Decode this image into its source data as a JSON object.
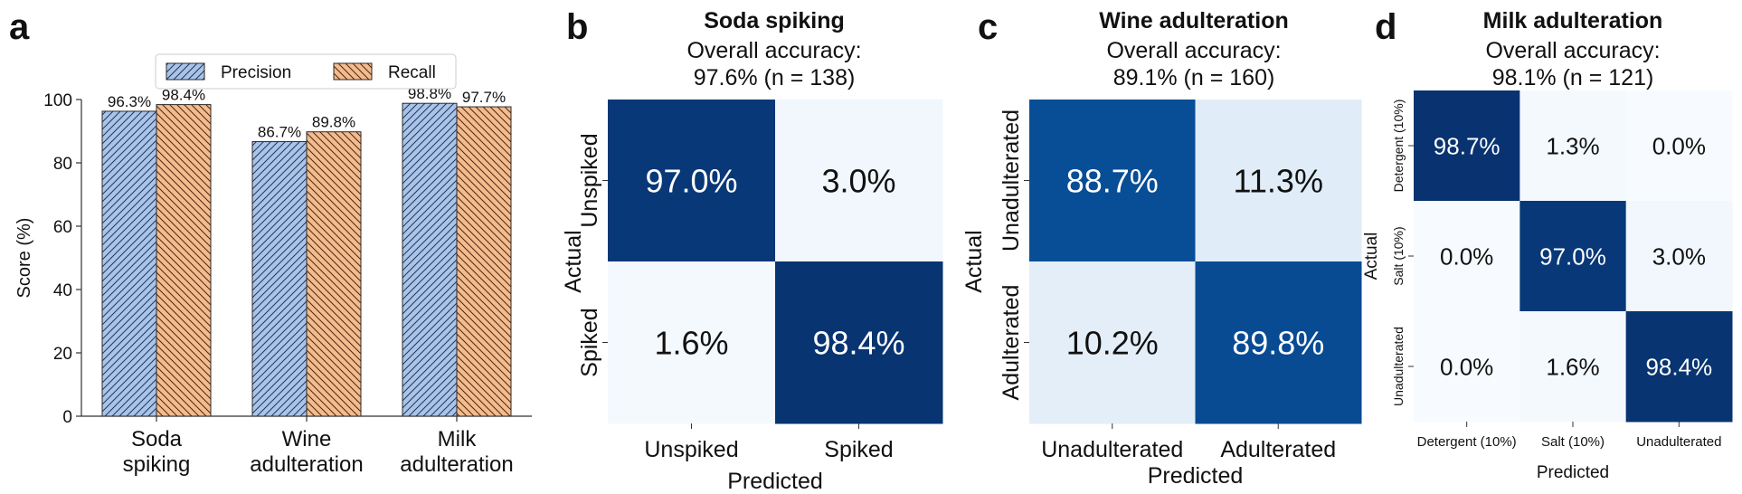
{
  "chart_data": [
    {
      "type": "bar",
      "panel_label": "a",
      "categories": [
        "Soda\nspiking",
        "Wine\nadulteration",
        "Milk\nadulteration"
      ],
      "series": [
        {
          "name": "Precision",
          "values": [
            96.3,
            86.7,
            98.8
          ],
          "labels": [
            "96.3%",
            "86.7%",
            "98.8%"
          ],
          "color": "#a9c4eb",
          "hatch": "////"
        },
        {
          "name": "Recall",
          "values": [
            98.4,
            89.8,
            97.7
          ],
          "labels": [
            "98.4%",
            "89.8%",
            "97.7%"
          ],
          "color": "#f4bb8e",
          "hatch": "\\\\\\\\"
        }
      ],
      "ylabel": "Score (%)",
      "xlabel": "",
      "ylim": [
        0,
        100
      ],
      "yticks": [
        0,
        20,
        40,
        60,
        80,
        100
      ],
      "legend": "top-center",
      "grid": false
    },
    {
      "type": "heatmap",
      "panel_label": "b",
      "title": "Soda spiking",
      "subtitle_lines": [
        "Overall accuracy:",
        "97.6% (n = 138)"
      ],
      "xlabel": "Predicted",
      "ylabel": "Actual",
      "x_labels": [
        "Unspiked",
        "Spiked"
      ],
      "y_labels": [
        "Unspiked",
        "Spiked"
      ],
      "values": [
        [
          97.0,
          3.0
        ],
        [
          1.6,
          98.4
        ]
      ],
      "cell_labels": [
        [
          "97.0%",
          "3.0%"
        ],
        [
          "1.6%",
          "98.4%"
        ]
      ],
      "colormap": "Blues"
    },
    {
      "type": "heatmap",
      "panel_label": "c",
      "title": "Wine adulteration",
      "subtitle_lines": [
        "Overall accuracy:",
        "89.1% (n = 160)"
      ],
      "xlabel": "Predicted",
      "ylabel": "Actual",
      "x_labels": [
        "Unadulterated",
        "Adulterated"
      ],
      "y_labels": [
        "Unadulterated",
        "Adulterated"
      ],
      "values": [
        [
          88.7,
          11.3
        ],
        [
          10.2,
          89.8
        ]
      ],
      "cell_labels": [
        [
          "88.7%",
          "11.3%"
        ],
        [
          "10.2%",
          "89.8%"
        ]
      ],
      "colormap": "Blues"
    },
    {
      "type": "heatmap",
      "panel_label": "d",
      "title": "Milk adulteration",
      "subtitle_lines": [
        "Overall accuracy:",
        "98.1% (n = 121)"
      ],
      "xlabel": "Predicted",
      "ylabel": "Actual",
      "x_labels": [
        "Detergent (10%)",
        "Salt (10%)",
        "Unadulterated"
      ],
      "y_labels": [
        "Detergent (10%)",
        "Salt (10%)",
        "Unadulterated"
      ],
      "values": [
        [
          98.7,
          1.3,
          0.0
        ],
        [
          0.0,
          97.0,
          3.0
        ],
        [
          0.0,
          1.6,
          98.4
        ]
      ],
      "cell_labels": [
        [
          "98.7%",
          "1.3%",
          "0.0%"
        ],
        [
          "0.0%",
          "97.0%",
          "3.0%"
        ],
        [
          "0.0%",
          "1.6%",
          "98.4%"
        ]
      ],
      "colormap": "Blues"
    }
  ]
}
